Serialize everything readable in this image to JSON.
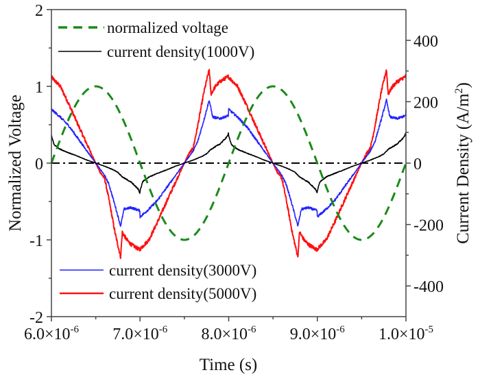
{
  "chart_data": {
    "type": "line",
    "title": "",
    "xlabel": "Time (s)",
    "ylabel_left": "Normalized Voltage",
    "ylabel_right": "Current Density (A/m2)",
    "ylabel_right_parts": {
      "main": "Current Density (A/m",
      "sup": "2",
      "end": ")"
    },
    "xlim": [
      6e-06,
      1e-05
    ],
    "ylim_left": [
      -2,
      2
    ],
    "ylim_right": [
      -500,
      500
    ],
    "x_ticks": [
      {
        "value": 6e-06,
        "mant": "6.0×10",
        "exp": "-6"
      },
      {
        "value": 7e-06,
        "mant": "7.0×10",
        "exp": "-6"
      },
      {
        "value": 8e-06,
        "mant": "8.0×10",
        "exp": "-6"
      },
      {
        "value": 9e-06,
        "mant": "9.0×10",
        "exp": "-6"
      },
      {
        "value": 1e-05,
        "mant": "1.0×10",
        "exp": "-5"
      }
    ],
    "x_minor_ticks": [
      6.5e-06,
      7.5e-06,
      8.5e-06,
      9.5e-06
    ],
    "y_left_ticks": [
      {
        "value": -2,
        "label": "-2"
      },
      {
        "value": -1,
        "label": "-1"
      },
      {
        "value": 0,
        "label": "0"
      },
      {
        "value": 1,
        "label": "1"
      },
      {
        "value": 2,
        "label": "2"
      }
    ],
    "y_left_minor_ticks": [
      -1.5,
      -0.5,
      0.5,
      1.5
    ],
    "y_right_ticks": [
      {
        "value": -400,
        "label": "-400"
      },
      {
        "value": -200,
        "label": "-200"
      },
      {
        "value": 0,
        "label": "0"
      },
      {
        "value": 200,
        "label": "200"
      },
      {
        "value": 400,
        "label": "400"
      }
    ],
    "y_right_minor_ticks": [
      -300,
      -100,
      100,
      300
    ],
    "zero_line": {
      "axis": "left",
      "value": 0,
      "style": "dash-dot",
      "color": "#000000"
    },
    "grid": false,
    "legend": [
      {
        "label": "normalized voltage",
        "color": "#1a8a1a",
        "style": "dashed",
        "placement": "top-left"
      },
      {
        "label": "current density(1000V)",
        "color": "#000000",
        "style": "solid",
        "placement": "top-left"
      },
      {
        "label": "current density(3000V)",
        "color": "#2222ff",
        "style": "solid",
        "placement": "bottom-left"
      },
      {
        "label": "current density(5000V)",
        "color": "#ff1010",
        "style": "solid",
        "placement": "bottom-left"
      }
    ],
    "series": [
      {
        "name": "normalized voltage",
        "axis": "left",
        "color": "#1a8a1a",
        "style": "dashed",
        "model": "sine",
        "amplitude": 1,
        "period": 2e-06,
        "phase_zero": 6e-06
      },
      {
        "name": "current density(1000V)",
        "axis": "right",
        "color": "#000000",
        "style": "solid",
        "noise": 4,
        "half_period_antisymmetric": true,
        "half_period": 1e-06,
        "t0": 6e-06,
        "keypoints_offset_us": [
          0,
          0.03,
          0.1,
          0.2,
          0.3,
          0.4,
          0.5,
          0.6,
          0.7,
          0.75,
          0.8,
          0.9,
          0.98,
          1.0
        ],
        "keypoints_value": [
          90,
          60,
          45,
          33,
          22,
          10,
          0,
          -10,
          -22,
          -30,
          -45,
          -62,
          -85,
          -100
        ]
      },
      {
        "name": "current density(3000V)",
        "axis": "right",
        "color": "#2222ff",
        "style": "solid",
        "noise": 8,
        "half_period_antisymmetric": true,
        "half_period": 1e-06,
        "t0": 6e-06,
        "keypoints_offset_us": [
          0,
          0.1,
          0.2,
          0.3,
          0.4,
          0.5,
          0.55,
          0.6,
          0.65,
          0.72,
          0.78,
          0.82,
          0.9,
          1.0
        ],
        "keypoints_value": [
          175,
          150,
          120,
          80,
          40,
          0,
          -20,
          -40,
          -70,
          -140,
          -205,
          -150,
          -145,
          -155
        ]
      },
      {
        "name": "current density(5000V)",
        "axis": "right",
        "color": "#ff1010",
        "style": "solid",
        "noise": 12,
        "half_period_antisymmetric": true,
        "half_period": 1e-06,
        "t0": 6e-06,
        "keypoints_offset_us": [
          0,
          0.1,
          0.2,
          0.3,
          0.4,
          0.5,
          0.55,
          0.6,
          0.65,
          0.72,
          0.78,
          0.8,
          0.85,
          0.9,
          1.0
        ],
        "keypoints_value": [
          280,
          250,
          190,
          125,
          62,
          0,
          -30,
          -50,
          -120,
          -230,
          -305,
          -225,
          -250,
          -265,
          -283
        ]
      }
    ]
  }
}
